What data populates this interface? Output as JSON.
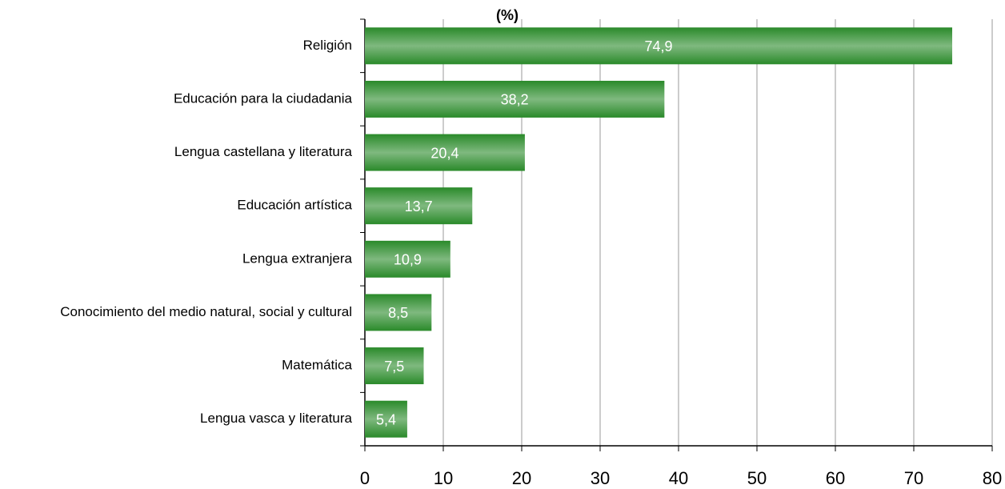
{
  "chart_data": {
    "type": "bar",
    "orientation": "horizontal",
    "x_label": "(%)",
    "categories": [
      "Religión",
      "Educación para la ciudadania",
      "Lengua castellana y literatura",
      "Educación artística",
      "Lengua extranjera",
      "Conocimiento del medio natural, social y cultural",
      "Matemática",
      "Lengua vasca y literatura"
    ],
    "values": [
      74.9,
      38.2,
      20.4,
      13.7,
      10.9,
      8.5,
      7.5,
      5.4
    ],
    "value_labels": [
      "74,9",
      "38,2",
      "20,4",
      "13,7",
      "10,9",
      "8,5",
      "7,5",
      "5,4"
    ],
    "color": "#2a8a2a",
    "xlim": [
      0,
      80
    ],
    "xticks": [
      0,
      10,
      20,
      30,
      40,
      50,
      60,
      70,
      80
    ],
    "grid": true
  }
}
